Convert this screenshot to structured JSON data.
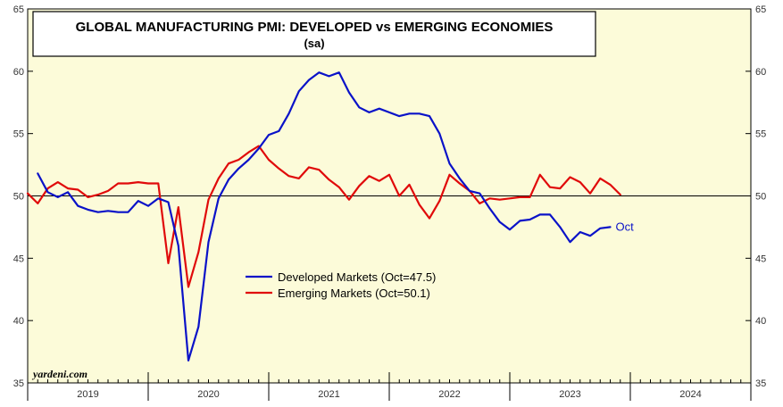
{
  "chart_data": {
    "type": "line",
    "title": "GLOBAL MANUFACTURING PMI: DEVELOPED vs EMERGING ECONOMIES",
    "subtitle": "(sa)",
    "x_unit": "month index (0 = Jan 2019)",
    "xlim": [
      0,
      72
    ],
    "ylim": [
      35,
      65
    ],
    "y_ticks": [
      35,
      40,
      45,
      50,
      55,
      60,
      65
    ],
    "reference_line": 50,
    "year_labels": [
      {
        "label": "2019",
        "center": 6
      },
      {
        "label": "2020",
        "center": 18
      },
      {
        "label": "2021",
        "center": 30
      },
      {
        "label": "2022",
        "center": 42
      },
      {
        "label": "2023",
        "center": 54
      },
      {
        "label": "2024",
        "center": 66
      }
    ],
    "series": [
      {
        "name": "Developed Markets (Oct=47.5)",
        "color": "#0a12c8",
        "end_label": "Oct",
        "start_month": 1,
        "values": [
          51.8,
          50.3,
          49.9,
          50.3,
          49.2,
          48.9,
          48.7,
          48.8,
          48.7,
          48.7,
          49.6,
          49.2,
          49.8,
          49.5,
          46.0,
          36.8,
          39.5,
          46.3,
          49.8,
          51.3,
          52.2,
          52.9,
          53.8,
          54.9,
          55.2,
          56.6,
          58.4,
          59.3,
          59.9,
          59.6,
          59.9,
          58.3,
          57.1,
          56.7,
          57.0,
          56.7,
          56.4,
          56.6,
          56.6,
          56.4,
          55.0,
          52.6,
          51.4,
          50.4,
          50.2,
          49.0,
          47.9,
          47.3,
          48.0,
          48.1,
          48.5,
          48.5,
          47.5,
          46.3,
          47.1,
          46.8,
          47.4,
          47.5
        ]
      },
      {
        "name": "Emerging Markets (Oct=50.1)",
        "color": "#e00a0a",
        "end_label": "",
        "start_month": 0,
        "values": [
          50.2,
          49.4,
          50.6,
          51.1,
          50.6,
          50.5,
          49.9,
          50.1,
          50.4,
          51.0,
          51.0,
          51.1,
          51.0,
          51.0,
          44.6,
          49.1,
          42.7,
          45.5,
          49.7,
          51.4,
          52.6,
          52.9,
          53.5,
          54.0,
          52.9,
          52.2,
          51.6,
          51.4,
          52.3,
          52.1,
          51.3,
          50.7,
          49.7,
          50.8,
          51.6,
          51.2,
          51.7,
          50.0,
          50.9,
          49.3,
          48.2,
          49.6,
          51.7,
          51.0,
          50.4,
          49.4,
          49.8,
          49.7,
          49.8,
          49.9,
          49.9,
          51.7,
          50.7,
          50.6,
          51.5,
          51.1,
          50.2,
          51.4,
          50.9,
          50.1
        ]
      }
    ],
    "source": "yardeni.com"
  }
}
